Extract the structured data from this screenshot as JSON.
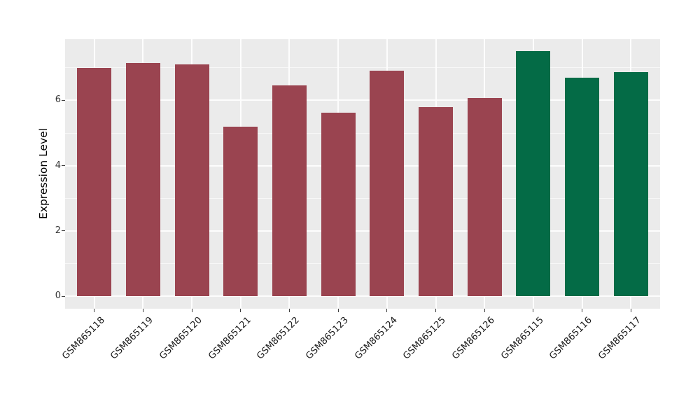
{
  "chart_data": {
    "type": "bar",
    "title": "",
    "xlabel": "",
    "ylabel": "Expression Level",
    "categories": [
      "GSM865118",
      "GSM865119",
      "GSM865120",
      "GSM865121",
      "GSM865122",
      "GSM865123",
      "GSM865124",
      "GSM865125",
      "GSM865126",
      "GSM865115",
      "GSM865116",
      "GSM865117"
    ],
    "values": [
      7.0,
      7.15,
      7.1,
      5.2,
      6.45,
      5.62,
      6.92,
      5.8,
      6.07,
      7.5,
      6.7,
      6.87
    ],
    "bar_colors": [
      "#9a4450",
      "#9a4450",
      "#9a4450",
      "#9a4450",
      "#9a4450",
      "#9a4450",
      "#9a4450",
      "#9a4450",
      "#9a4450",
      "#046b46",
      "#046b46",
      "#046b46"
    ],
    "group_colors": {
      "red_group": "#9a4450",
      "green_group": "#046b46"
    },
    "yticks": [
      0,
      2,
      4,
      6
    ],
    "yticks_minor": [
      1,
      3,
      5,
      7
    ],
    "ylim": [
      -0.385,
      7.875
    ],
    "x_tick_rotation_deg": 45,
    "legend": false,
    "grid": true,
    "panel_bg": "#ebebeb",
    "grid_major_color": "#fdfdfd",
    "figure_bg": "#ffffff",
    "bar_width_fraction": 0.7
  }
}
